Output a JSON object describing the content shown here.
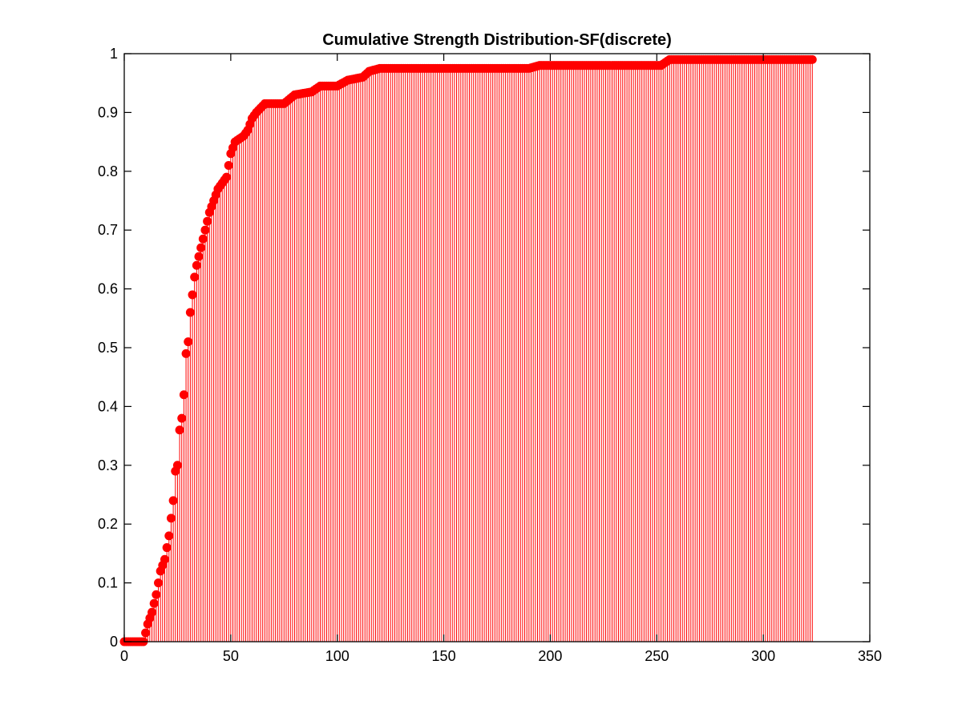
{
  "chart_data": {
    "type": "stem",
    "title": "Cumulative Strength Distribution-SF(discrete)",
    "xlabel": "",
    "ylabel": "",
    "xlim": [
      0,
      350
    ],
    "ylim": [
      0,
      1
    ],
    "x_ticks": [
      "0",
      "50",
      "100",
      "150",
      "200",
      "250",
      "300",
      "350"
    ],
    "y_ticks": [
      "0",
      "0.1",
      "0.2",
      "0.3",
      "0.4",
      "0.5",
      "0.6",
      "0.7",
      "0.8",
      "0.9",
      "1"
    ],
    "grid": false,
    "series_color": "#ff0000",
    "x_range": [
      0,
      323
    ],
    "cdf_knots": [
      [
        0,
        0
      ],
      [
        9,
        0
      ],
      [
        11,
        0.03
      ],
      [
        13,
        0.05
      ],
      [
        15,
        0.08
      ],
      [
        17,
        0.12
      ],
      [
        19,
        0.14
      ],
      [
        21,
        0.18
      ],
      [
        22,
        0.21
      ],
      [
        23,
        0.24
      ],
      [
        24,
        0.29
      ],
      [
        25,
        0.3
      ],
      [
        26,
        0.36
      ],
      [
        27,
        0.38
      ],
      [
        28,
        0.42
      ],
      [
        29,
        0.49
      ],
      [
        30,
        0.51
      ],
      [
        31,
        0.56
      ],
      [
        32,
        0.59
      ],
      [
        33,
        0.62
      ],
      [
        34,
        0.64
      ],
      [
        36,
        0.67
      ],
      [
        38,
        0.7
      ],
      [
        40,
        0.73
      ],
      [
        42,
        0.75
      ],
      [
        44,
        0.77
      ],
      [
        46,
        0.78
      ],
      [
        48,
        0.79
      ],
      [
        50,
        0.83
      ],
      [
        52,
        0.85
      ],
      [
        56,
        0.86
      ],
      [
        58,
        0.87
      ],
      [
        60,
        0.89
      ],
      [
        62,
        0.9
      ],
      [
        66,
        0.915
      ],
      [
        75,
        0.915
      ],
      [
        80,
        0.93
      ],
      [
        88,
        0.935
      ],
      [
        92,
        0.945
      ],
      [
        100,
        0.945
      ],
      [
        105,
        0.955
      ],
      [
        112,
        0.96
      ],
      [
        115,
        0.97
      ],
      [
        120,
        0.975
      ],
      [
        190,
        0.975
      ],
      [
        195,
        0.98
      ],
      [
        252,
        0.98
      ],
      [
        256,
        0.99
      ],
      [
        323,
        0.99
      ]
    ]
  }
}
